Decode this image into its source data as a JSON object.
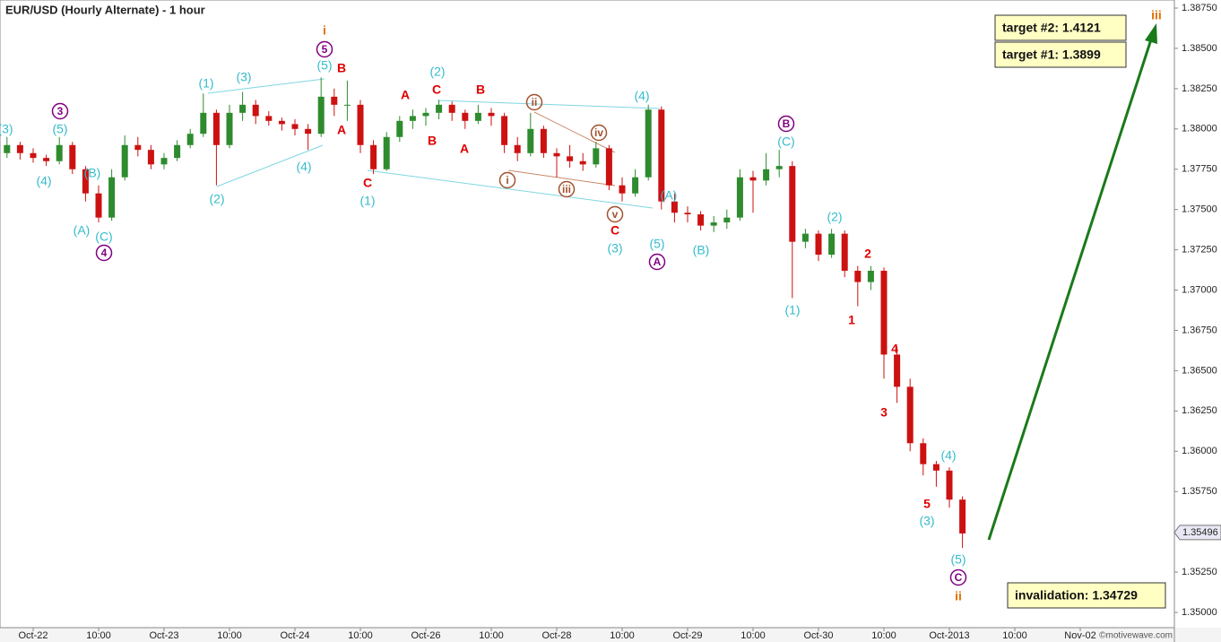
{
  "chart_data": {
    "type": "candlestick",
    "title": "EUR/USD (Hourly Alternate) - 1 hour",
    "watermark": "©motivewave.com",
    "up_color": "#2e8b2e",
    "down_color": "#cc1111",
    "categories": [
      null,
      null,
      "Oct-22",
      null,
      null,
      null,
      null,
      "10:00",
      null,
      null,
      null,
      null,
      "Oct-23",
      null,
      null,
      null,
      null,
      "10:00",
      null,
      null,
      null,
      null,
      "Oct-24",
      null,
      null,
      null,
      null,
      "10:00",
      null,
      null,
      null,
      null,
      "Oct-26",
      null,
      null,
      null,
      null,
      "10:00",
      null,
      null,
      null,
      null,
      "Oct-28",
      null,
      null,
      null,
      null,
      "10:00",
      null,
      null,
      null,
      null,
      "Oct-29",
      null,
      null,
      null,
      null,
      "10:00",
      null,
      null,
      null,
      null,
      "Oct-30",
      null,
      null,
      null,
      null,
      "10:00",
      null,
      null,
      null,
      null,
      "Oct-2013",
      null,
      null,
      null,
      null,
      "10:00",
      null,
      null,
      null,
      null,
      "Nov-02"
    ],
    "open": [
      1.3785,
      1.379,
      1.3785,
      1.3782,
      1.378,
      1.379,
      1.3775,
      1.376,
      1.3745,
      1.377,
      1.379,
      1.3787,
      1.3778,
      1.3782,
      1.379,
      1.3797,
      1.381,
      1.379,
      1.381,
      1.3815,
      1.3808,
      1.3805,
      1.3803,
      1.38,
      1.3797,
      1.382,
      1.3815,
      1.3815,
      1.379,
      1.3775,
      1.3795,
      1.3805,
      1.3808,
      1.381,
      1.3815,
      1.381,
      1.3805,
      1.381,
      1.3808,
      1.379,
      1.3785,
      1.38,
      1.3785,
      1.3783,
      1.378,
      1.3778,
      1.3788,
      1.3765,
      1.376,
      1.377,
      1.3812,
      1.3755,
      1.3748,
      1.3747,
      1.374,
      1.3742,
      1.3745,
      1.377,
      1.3768,
      1.3775,
      1.3777,
      1.373,
      1.3735,
      1.3722,
      1.3735,
      1.3712,
      1.3705,
      1.3712,
      1.366,
      1.364,
      1.3605,
      1.3592,
      1.3588,
      1.357,
      null,
      null,
      null,
      null,
      null,
      null,
      null,
      null,
      null
    ],
    "high": [
      1.3795,
      1.3792,
      1.3788,
      1.3784,
      1.3795,
      1.3792,
      1.3777,
      1.3765,
      1.3775,
      1.3796,
      1.3795,
      1.379,
      1.3785,
      1.3793,
      1.38,
      1.3822,
      1.3812,
      1.3815,
      1.3823,
      1.3818,
      1.3811,
      1.3807,
      1.3806,
      1.3803,
      1.3832,
      1.3825,
      1.383,
      1.3818,
      1.3793,
      1.3798,
      1.3808,
      1.3812,
      1.3813,
      1.3818,
      1.3817,
      1.3812,
      1.3815,
      1.3813,
      1.381,
      1.3795,
      1.381,
      1.3802,
      1.3788,
      1.379,
      1.3785,
      1.3792,
      1.379,
      1.377,
      1.3775,
      1.3815,
      1.3814,
      1.376,
      1.3752,
      1.3749,
      1.3746,
      1.375,
      1.3775,
      1.3774,
      1.3785,
      1.3787,
      1.378,
      1.3738,
      1.3737,
      1.3738,
      1.3737,
      1.3715,
      1.3715,
      1.3714,
      1.3665,
      1.3645,
      1.3608,
      1.3594,
      1.359,
      1.3572,
      null,
      null,
      null,
      null,
      null,
      null,
      null,
      null,
      null
    ],
    "low": [
      1.3782,
      1.3781,
      1.3779,
      1.3777,
      1.3778,
      1.3772,
      1.3755,
      1.3742,
      1.3743,
      1.3768,
      1.3783,
      1.3775,
      1.3775,
      1.378,
      1.3788,
      1.3795,
      1.3765,
      1.3788,
      1.3805,
      1.3803,
      1.3802,
      1.3799,
      1.3796,
      1.3787,
      1.3795,
      1.3808,
      1.3805,
      1.3785,
      1.3772,
      1.3774,
      1.3792,
      1.38,
      1.3802,
      1.3806,
      1.3805,
      1.38,
      1.3803,
      1.3802,
      1.3785,
      1.378,
      1.3783,
      1.3782,
      1.377,
      1.3776,
      1.3774,
      1.3776,
      1.3762,
      1.3755,
      1.3758,
      1.3768,
      1.375,
      1.3742,
      1.3742,
      1.3737,
      1.3736,
      1.3738,
      1.3743,
      1.3748,
      1.3765,
      1.377,
      1.3695,
      1.3726,
      1.3718,
      1.372,
      1.3708,
      1.369,
      1.37,
      1.3645,
      1.363,
      1.36,
      1.3585,
      1.3578,
      1.3565,
      1.354,
      null,
      null,
      null,
      null,
      null,
      null,
      null,
      null,
      null
    ],
    "close": [
      1.379,
      1.3785,
      1.3782,
      1.378,
      1.379,
      1.3775,
      1.376,
      1.3745,
      1.377,
      1.379,
      1.3787,
      1.3778,
      1.3782,
      1.379,
      1.3797,
      1.381,
      1.379,
      1.381,
      1.3815,
      1.3808,
      1.3805,
      1.3803,
      1.38,
      1.3797,
      1.382,
      1.3815,
      1.3815,
      1.379,
      1.3775,
      1.3795,
      1.3805,
      1.3808,
      1.381,
      1.3815,
      1.381,
      1.3805,
      1.381,
      1.3808,
      1.379,
      1.3785,
      1.38,
      1.3785,
      1.3783,
      1.378,
      1.3778,
      1.3788,
      1.3765,
      1.376,
      1.377,
      1.3812,
      1.3755,
      1.3748,
      1.3747,
      1.374,
      1.3742,
      1.3745,
      1.377,
      1.3768,
      1.3775,
      1.3777,
      1.373,
      1.3735,
      1.3722,
      1.3735,
      1.3712,
      1.3705,
      1.3712,
      1.366,
      1.364,
      1.3605,
      1.3592,
      1.3588,
      1.357,
      1.3549,
      null,
      null,
      null,
      null,
      null,
      null,
      null,
      null,
      null
    ],
    "ylim": [
      1.35,
      1.3875
    ],
    "yticks": [
      {
        "value": 1.35,
        "label": "1.35000"
      },
      {
        "value": 1.3525,
        "label": "1.35250"
      },
      {
        "value": 1.355,
        "label": "1.35500"
      },
      {
        "value": 1.3575,
        "label": "1.35750"
      },
      {
        "value": 1.36,
        "label": "1.36000"
      },
      {
        "value": 1.3625,
        "label": "1.36250"
      },
      {
        "value": 1.365,
        "label": "1.36500"
      },
      {
        "value": 1.3675,
        "label": "1.36750"
      },
      {
        "value": 1.37,
        "label": "1.37000"
      },
      {
        "value": 1.3725,
        "label": "1.37250"
      },
      {
        "value": 1.375,
        "label": "1.37500"
      },
      {
        "value": 1.3775,
        "label": "1.37750"
      },
      {
        "value": 1.38,
        "label": "1.38000"
      },
      {
        "value": 1.3825,
        "label": "1.38250"
      },
      {
        "value": 1.385,
        "label": "1.38500"
      },
      {
        "value": 1.3875,
        "label": "1.38750"
      }
    ],
    "last_price": 1.35496,
    "boxes": [
      "target #2:  1.4121",
      "target #1:  1.3899",
      "invalidation:  1.34729"
    ],
    "annotations": [
      {
        "text": "(3)",
        "color": "#33bbcc"
      },
      {
        "text": "3",
        "color": "#800080",
        "circled": true
      },
      {
        "text": "(5)",
        "color": "#33bbcc"
      },
      {
        "text": "(4)",
        "color": "#33bbcc"
      },
      {
        "text": "(B)",
        "color": "#33bbcc"
      },
      {
        "text": "(A)",
        "color": "#33bbcc"
      },
      {
        "text": "(C)",
        "color": "#33bbcc"
      },
      {
        "text": "4",
        "color": "#800080",
        "circled": true
      },
      {
        "text": "(1)",
        "color": "#33bbcc"
      },
      {
        "text": "(3)",
        "color": "#33bbcc"
      },
      {
        "text": "(2)",
        "color": "#33bbcc"
      },
      {
        "text": "(4)",
        "color": "#33bbcc"
      },
      {
        "text": "i",
        "color": "#e07000"
      },
      {
        "text": "5",
        "color": "#800080",
        "circled": true
      },
      {
        "text": "(5)",
        "color": "#33bbcc"
      },
      {
        "text": "B",
        "color": "#e00000"
      },
      {
        "text": "A",
        "color": "#e00000"
      },
      {
        "text": "C",
        "color": "#e00000"
      },
      {
        "text": "(1)",
        "color": "#33bbcc"
      },
      {
        "text": "A",
        "color": "#e00000"
      },
      {
        "text": "C",
        "color": "#e00000"
      },
      {
        "text": "(2)",
        "color": "#33bbcc"
      },
      {
        "text": "B",
        "color": "#e00000"
      },
      {
        "text": "B",
        "color": "#e00000"
      },
      {
        "text": "A",
        "color": "#e00000"
      },
      {
        "text": "ii",
        "color": "#a0522d",
        "circled": true
      },
      {
        "text": "iv",
        "color": "#a0522d",
        "circled": true
      },
      {
        "text": "i",
        "color": "#a0522d",
        "circled": true
      },
      {
        "text": "iii",
        "color": "#a0522d",
        "circled": true
      },
      {
        "text": "v",
        "color": "#a0522d",
        "circled": true
      },
      {
        "text": "C",
        "color": "#e00000"
      },
      {
        "text": "(3)",
        "color": "#33bbcc"
      },
      {
        "text": "(4)",
        "color": "#33bbcc"
      },
      {
        "text": "(A)",
        "color": "#33bbcc"
      },
      {
        "text": "(5)",
        "color": "#33bbcc"
      },
      {
        "text": "A",
        "color": "#800080",
        "circled": true
      },
      {
        "text": "(B)",
        "color": "#33bbcc"
      },
      {
        "text": "B",
        "color": "#800080",
        "circled": true
      },
      {
        "text": "(C)",
        "color": "#33bbcc"
      },
      {
        "text": "(1)",
        "color": "#33bbcc"
      },
      {
        "text": "(2)",
        "color": "#33bbcc"
      },
      {
        "text": "2",
        "color": "#e00000"
      },
      {
        "text": "1",
        "color": "#e00000"
      },
      {
        "text": "4",
        "color": "#e00000"
      },
      {
        "text": "3",
        "color": "#e00000"
      },
      {
        "text": "(4)",
        "color": "#33bbcc"
      },
      {
        "text": "5",
        "color": "#e00000"
      },
      {
        "text": "(3)",
        "color": "#33bbcc"
      },
      {
        "text": "(5)",
        "color": "#33bbcc"
      },
      {
        "text": "C",
        "color": "#800080",
        "circled": true
      },
      {
        "text": "ii",
        "color": "#e07000"
      },
      {
        "text": "iii",
        "color": "#e07000"
      }
    ]
  }
}
